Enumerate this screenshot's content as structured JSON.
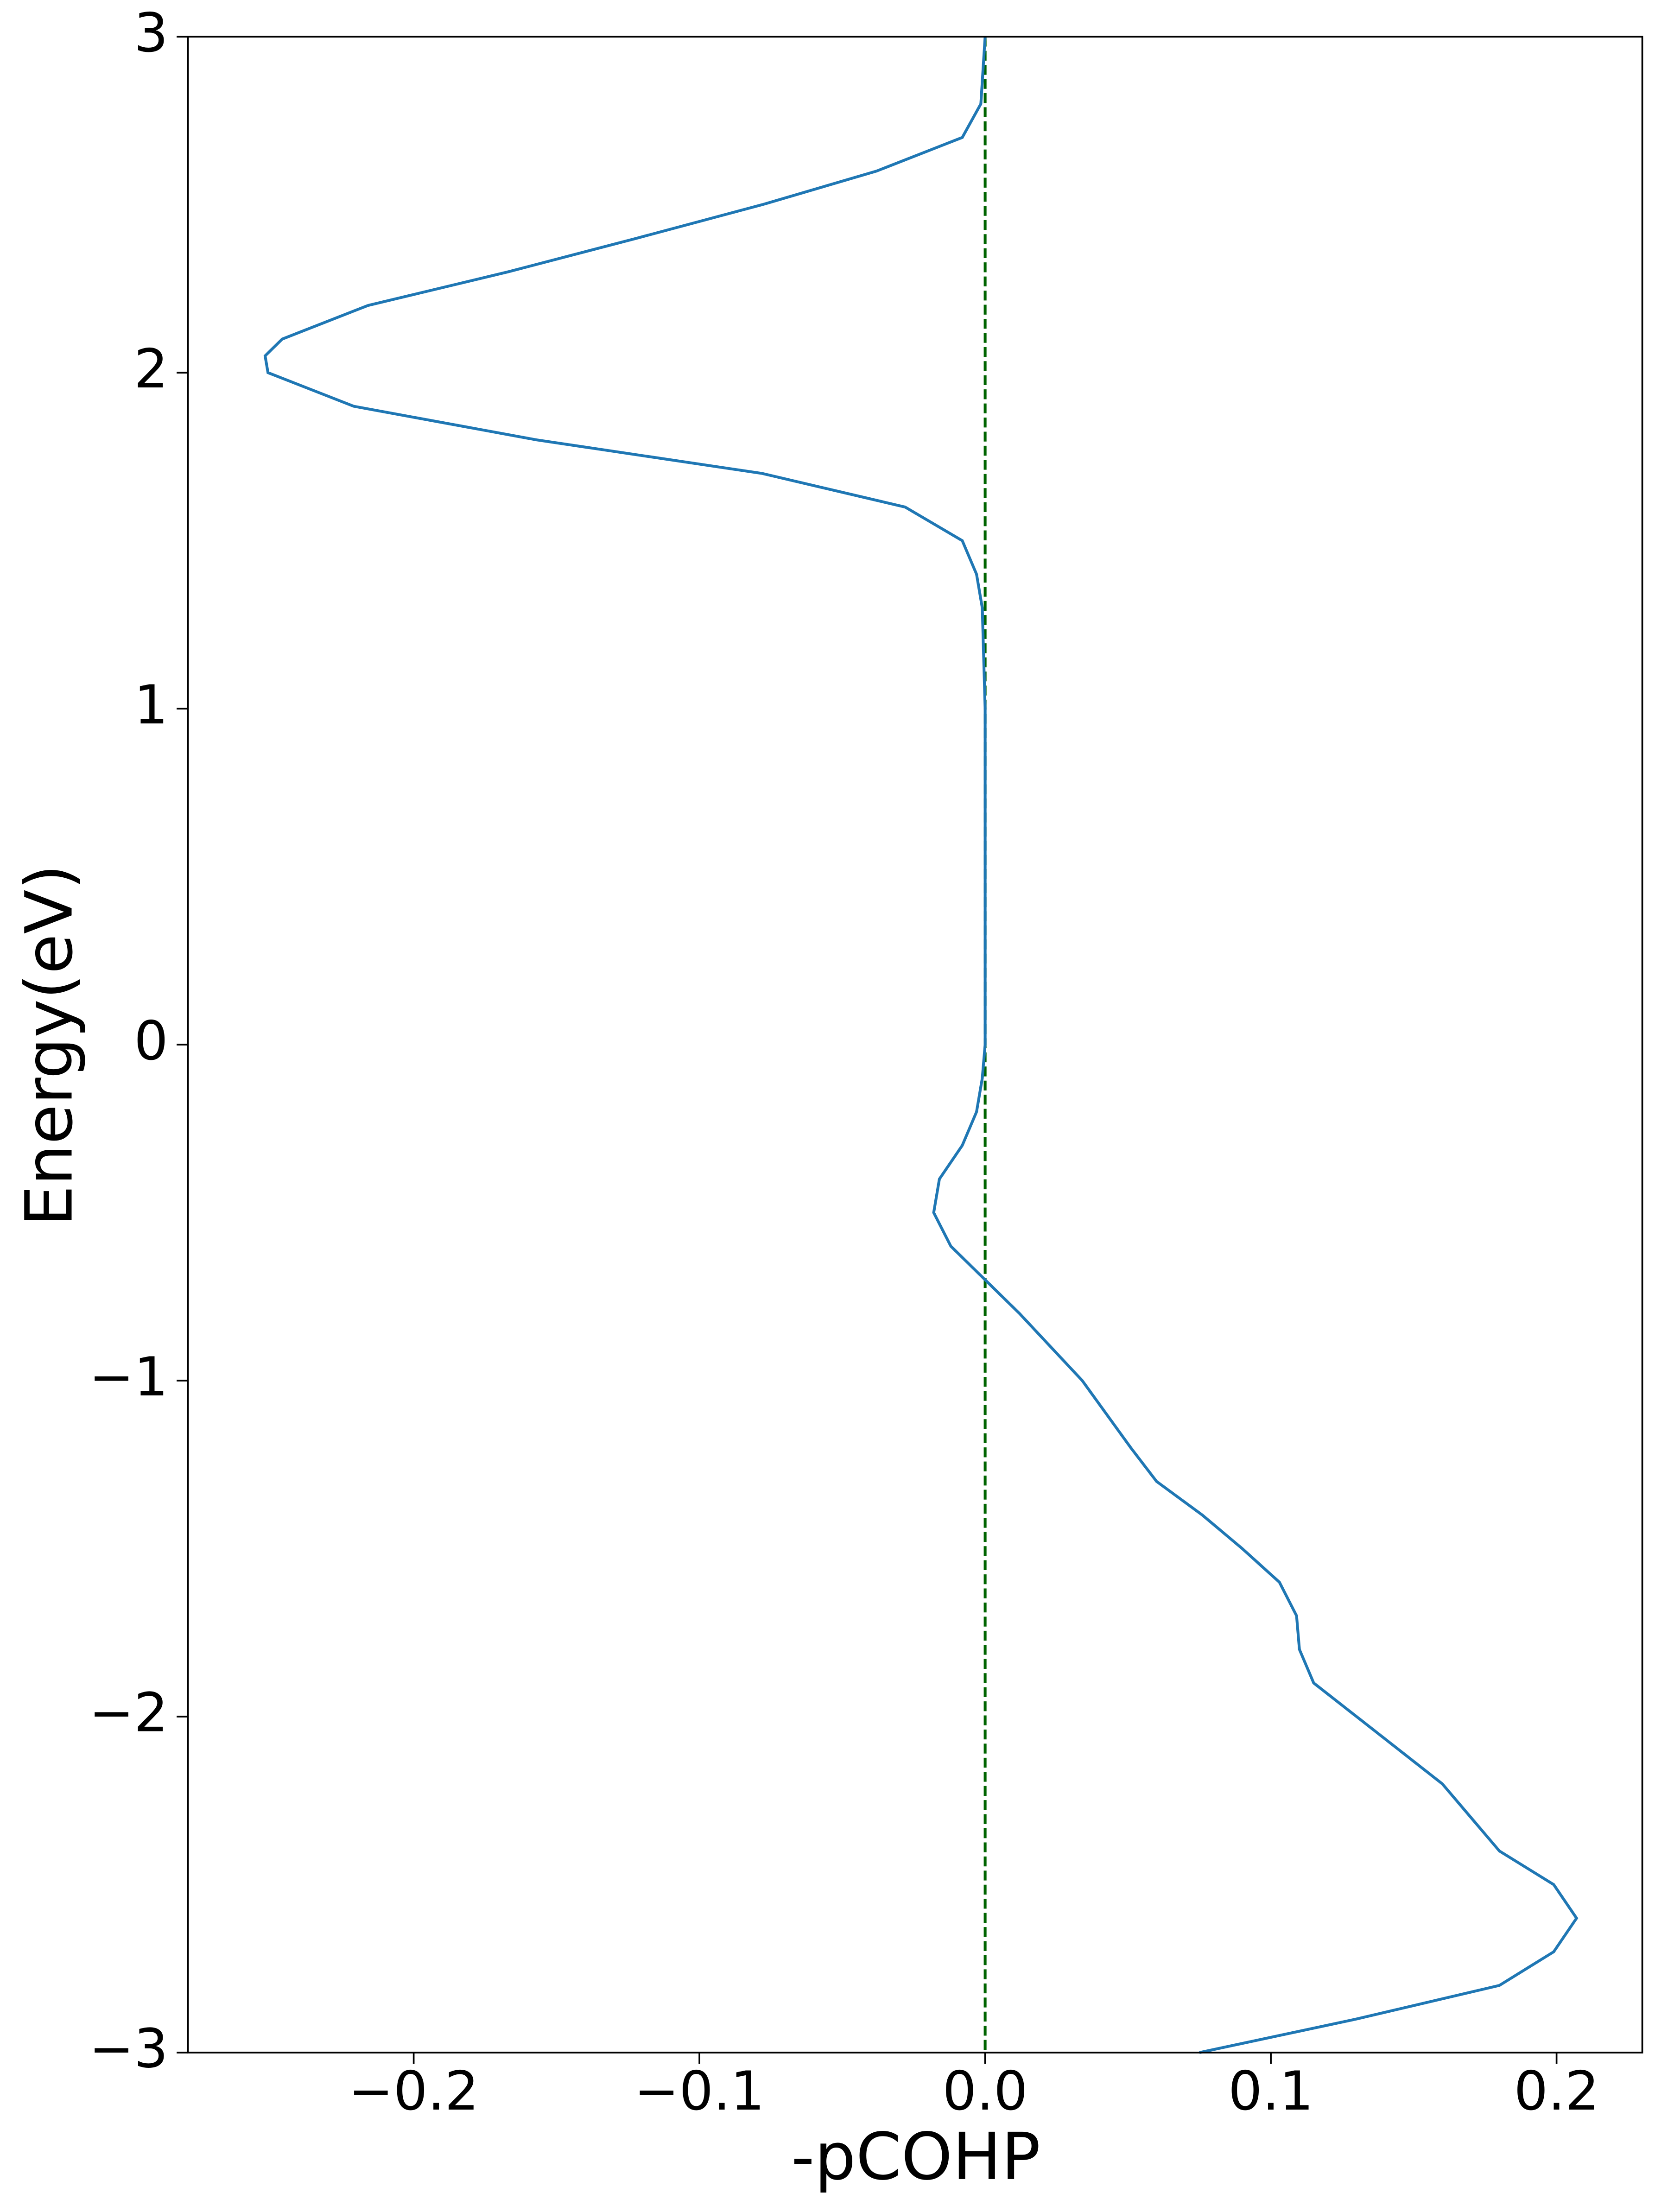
{
  "chart_data": {
    "type": "line",
    "x_label": "-pCOHP",
    "y_label": "Energy(eV)",
    "xlim": [
      -0.279,
      0.23
    ],
    "ylim": [
      -3,
      3
    ],
    "xticks": [
      {
        "value": -0.2,
        "label": "−0.2"
      },
      {
        "value": -0.1,
        "label": "−0.1"
      },
      {
        "value": 0,
        "label": "0.0"
      },
      0.1,
      0.2
    ],
    "yticks": [
      {
        "value": -3,
        "label": "−3"
      },
      {
        "value": -2,
        "label": "−2"
      },
      {
        "value": -1,
        "label": "−1"
      },
      0,
      1,
      2,
      3
    ],
    "reference_line": {
      "x": 0,
      "color": "#006400",
      "style": "dashed"
    },
    "series": [
      {
        "color": "#1f77b4",
        "y": [
          -3,
          -2.9,
          -2.8,
          -2.7,
          -2.6,
          -2.5,
          -2.4,
          -2.2,
          -2.0,
          -1.9,
          -1.8,
          -1.7,
          -1.6,
          -1.5,
          -1.4,
          -1.3,
          -1.2,
          -1.0,
          -0.8,
          -0.7,
          -0.6,
          -0.5,
          -0.4,
          -0.3,
          -0.2,
          -0.1,
          0,
          1.0,
          1.3,
          1.4,
          1.5,
          1.6,
          1.7,
          1.8,
          1.9,
          2.0,
          2.05,
          2.1,
          2.2,
          2.3,
          2.4,
          2.5,
          2.6,
          2.7,
          2.8,
          3.0
        ],
        "x": [
          0.075,
          0.13,
          0.18,
          0.199,
          0.207,
          0.199,
          0.18,
          0.16,
          0.13,
          0.115,
          0.11,
          0.109,
          0.103,
          0.09,
          0.076,
          0.06,
          0.051,
          0.034,
          0.012,
          0,
          -0.012,
          -0.018,
          -0.016,
          -0.008,
          -0.003,
          -0.001,
          0,
          0,
          -0.001,
          -0.003,
          -0.008,
          -0.028,
          -0.078,
          -0.157,
          -0.221,
          -0.251,
          -0.252,
          -0.246,
          -0.216,
          -0.167,
          -0.122,
          -0.078,
          -0.038,
          -0.008,
          -0.0015,
          0
        ]
      }
    ]
  }
}
